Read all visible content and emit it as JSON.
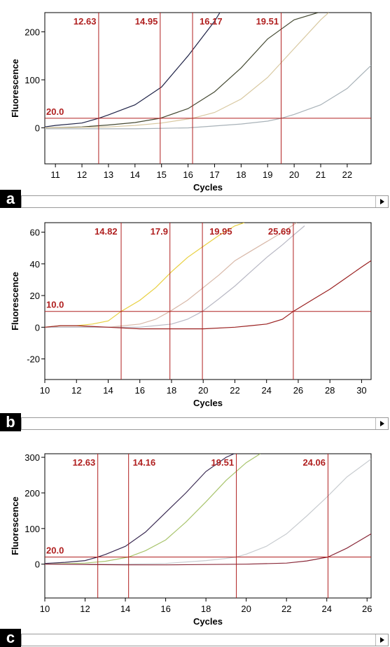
{
  "chart_data": [
    {
      "type": "line",
      "panel_label": "a",
      "xlabel": "Cycles",
      "ylabel": "Fluorescence",
      "xlim": [
        10.6,
        22.9
      ],
      "ylim": [
        -75,
        240
      ],
      "xticks": [
        11,
        12,
        13,
        14,
        15,
        16,
        17,
        18,
        19,
        20,
        21,
        22
      ],
      "yticks": [
        0,
        100,
        200
      ],
      "threshold": 20.0,
      "threshold_label": "20.0",
      "ct_values": [
        12.63,
        14.95,
        16.17,
        19.51
      ],
      "ct_labels": [
        "12.63",
        "14.95",
        "16.17",
        "19.51"
      ],
      "grid": false,
      "series": [
        {
          "color": "#1f2347",
          "x": [
            10.6,
            11,
            12,
            12.63,
            13,
            14,
            15,
            16,
            17,
            17.2
          ],
          "y": [
            2,
            5,
            10,
            20,
            27,
            48,
            85,
            150,
            222,
            240
          ]
        },
        {
          "color": "#454a33",
          "x": [
            10.6,
            12,
            13,
            14,
            14.95,
            16,
            17,
            18,
            19,
            20,
            20.9
          ],
          "y": [
            0,
            2,
            6,
            11,
            20,
            40,
            75,
            125,
            185,
            225,
            240
          ]
        },
        {
          "color": "#d8c8a0",
          "x": [
            10.6,
            13,
            14,
            15,
            16.17,
            17,
            18,
            19,
            20,
            21,
            21.3
          ],
          "y": [
            0,
            2,
            5,
            10,
            20,
            32,
            60,
            105,
            165,
            225,
            240
          ]
        },
        {
          "color": "#a8b2b8",
          "x": [
            10.6,
            14,
            16,
            18,
            19,
            19.51,
            20,
            21,
            22,
            22.9
          ],
          "y": [
            -2,
            -2,
            0,
            8,
            14,
            20,
            28,
            48,
            82,
            130
          ]
        }
      ]
    },
    {
      "type": "line",
      "panel_label": "b",
      "xlabel": "Cycles",
      "ylabel": "Fluorescence",
      "xlim": [
        10,
        30.6
      ],
      "ylim": [
        -33,
        66
      ],
      "xticks": [
        10,
        12,
        14,
        16,
        18,
        20,
        22,
        24,
        26,
        28,
        30
      ],
      "yticks": [
        -20,
        0,
        20,
        40,
        60
      ],
      "threshold": 10.0,
      "threshold_label": "10.0",
      "ct_values": [
        14.82,
        17.9,
        19.95,
        25.69
      ],
      "ct_labels": [
        "14.82",
        "17.9",
        "19.95",
        "25.69"
      ],
      "grid": false,
      "series": [
        {
          "color": "#e8d040",
          "x": [
            10,
            11,
            12,
            13,
            14,
            14.82,
            16,
            17,
            18,
            19,
            20,
            21,
            22,
            22.6
          ],
          "y": [
            0,
            1,
            1,
            2,
            4,
            10,
            17,
            25,
            35,
            44,
            51,
            58,
            64,
            66
          ]
        },
        {
          "color": "#d8b8a8",
          "x": [
            10,
            12,
            14,
            16,
            17,
            17.9,
            19,
            20,
            21,
            22,
            23,
            24,
            25,
            25.9
          ],
          "y": [
            0,
            0,
            0,
            2,
            5,
            10,
            17,
            25,
            33,
            42,
            48,
            54,
            60,
            66
          ]
        },
        {
          "color": "#b8b8c4",
          "x": [
            10,
            12,
            14,
            16,
            18,
            19,
            19.95,
            21,
            22,
            23,
            24,
            25,
            25.69,
            26.4
          ],
          "y": [
            0,
            0,
            0,
            0,
            2,
            5,
            10,
            18,
            26,
            35,
            44,
            52,
            58,
            64
          ]
        },
        {
          "color": "#9a2020",
          "x": [
            10,
            11,
            12,
            14,
            16,
            18,
            20,
            22,
            23,
            24,
            25,
            25.69,
            27,
            28,
            29,
            30,
            30.6
          ],
          "y": [
            0,
            1,
            1,
            0,
            -1,
            -1,
            -1,
            0,
            1,
            2,
            5,
            10,
            18,
            24,
            31,
            38,
            42
          ]
        }
      ]
    },
    {
      "type": "line",
      "panel_label": "c",
      "xlabel": "Cycles",
      "ylabel": "Fluorescence",
      "xlim": [
        10,
        26.2
      ],
      "ylim": [
        -95,
        310
      ],
      "xticks": [
        10,
        12,
        14,
        16,
        18,
        20,
        22,
        24,
        26
      ],
      "yticks": [
        0,
        100,
        200,
        300
      ],
      "threshold": 20.0,
      "threshold_label": "20.0",
      "ct_values": [
        12.63,
        14.16,
        19.51,
        24.06
      ],
      "ct_labels": [
        "12.63",
        "14.16",
        "19.51",
        "24.06"
      ],
      "grid": false,
      "series": [
        {
          "color": "#3a2a52",
          "x": [
            10,
            11,
            12,
            12.63,
            13,
            14,
            15,
            16,
            17,
            18,
            19,
            19.4
          ],
          "y": [
            2,
            5,
            10,
            20,
            27,
            50,
            90,
            145,
            200,
            260,
            300,
            310
          ]
        },
        {
          "color": "#a8c46c",
          "x": [
            10,
            12,
            13,
            14.16,
            15,
            16,
            17,
            18,
            19,
            20,
            20.7
          ],
          "y": [
            0,
            3,
            8,
            20,
            38,
            68,
            118,
            175,
            235,
            285,
            310
          ]
        },
        {
          "color": "#c8ccd0",
          "x": [
            10,
            14,
            16,
            18,
            19,
            19.51,
            20,
            21,
            22,
            23,
            24,
            25,
            26.2
          ],
          "y": [
            0,
            0,
            2,
            10,
            16,
            20,
            28,
            50,
            85,
            135,
            188,
            245,
            295
          ]
        },
        {
          "color": "#8a2a3a",
          "x": [
            10,
            12,
            14,
            16,
            18,
            20,
            22,
            23,
            24.06,
            25,
            26.2
          ],
          "y": [
            0,
            -1,
            -2,
            -2,
            -1,
            0,
            3,
            9,
            20,
            45,
            85
          ]
        }
      ]
    }
  ]
}
